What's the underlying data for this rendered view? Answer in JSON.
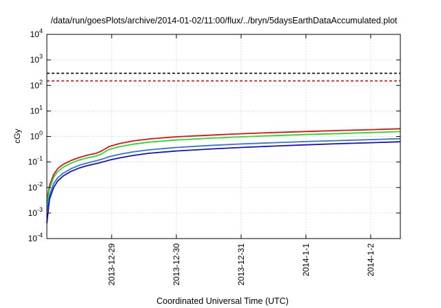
{
  "chart_data": {
    "type": "line",
    "title": "/data/run/goesPlots/archive/2014-01-02/11:00/flux/../bryn/5daysEarthDataAccumulated.plot",
    "xlabel": "Coordinated Universal Time (UTC)",
    "ylabel": "cGy",
    "y_scale": "log",
    "grid": true,
    "legend": "none",
    "xlim": [
      "2013-12-28T00:00",
      "2014-01-02T11:00"
    ],
    "ylim": [
      0.0001,
      10000
    ],
    "x_ticks": [
      {
        "x": "2013-12-29T00:00",
        "label": "2013-12-29"
      },
      {
        "x": "2013-12-30T00:00",
        "label": "2013-12-30"
      },
      {
        "x": "2013-12-31T00:00",
        "label": "2013-12-31"
      },
      {
        "x": "2014-01-01T00:00",
        "label": "2014-1-1"
      },
      {
        "x": "2014-01-02T00:00",
        "label": "2014-1-2"
      }
    ],
    "y_ticks": [
      {
        "value": 0.0001,
        "base": "10",
        "exp": "-4"
      },
      {
        "value": 0.001,
        "base": "10",
        "exp": "-3"
      },
      {
        "value": 0.01,
        "base": "10",
        "exp": "-2"
      },
      {
        "value": 0.1,
        "base": "10",
        "exp": "-1"
      },
      {
        "value": 1,
        "base": "10",
        "exp": "0"
      },
      {
        "value": 10,
        "base": "10",
        "exp": "1"
      },
      {
        "value": 100,
        "base": "10",
        "exp": "2"
      },
      {
        "value": 1000,
        "base": "10",
        "exp": "3"
      },
      {
        "value": 10000,
        "base": "10",
        "exp": "4"
      }
    ],
    "threshold_lines": [
      {
        "value": 300,
        "color": "#000000",
        "style": "dashed"
      },
      {
        "value": 150,
        "color": "#ff0000",
        "style": "dashed"
      }
    ],
    "series": [
      {
        "color": "#e01010",
        "x": [
          "2013-12-28T00:00",
          "2013-12-28T01:00",
          "2013-12-28T02:30",
          "2013-12-28T04:00",
          "2013-12-28T06:00",
          "2013-12-28T09:00",
          "2013-12-28T12:00",
          "2013-12-28T15:00",
          "2013-12-28T18:00",
          "2013-12-28T20:00",
          "2013-12-28T21:30",
          "2013-12-28T23:00",
          "2013-12-29T03:00",
          "2013-12-29T08:00",
          "2013-12-29T14:00",
          "2013-12-30T00:00",
          "2013-12-30T12:00",
          "2013-12-31T00:00",
          "2013-12-31T12:00",
          "2014-01-01T00:00",
          "2014-01-01T12:00",
          "2014-01-02T00:00",
          "2014-01-02T11:00"
        ],
        "values": [
          0.003,
          0.012,
          0.032,
          0.055,
          0.08,
          0.115,
          0.15,
          0.185,
          0.215,
          0.26,
          0.32,
          0.4,
          0.53,
          0.67,
          0.8,
          0.97,
          1.12,
          1.28,
          1.42,
          1.56,
          1.7,
          1.85,
          2.0
        ]
      },
      {
        "color": "#20e020",
        "x": [
          "2013-12-28T00:00",
          "2013-12-28T01:00",
          "2013-12-28T02:30",
          "2013-12-28T04:00",
          "2013-12-28T06:00",
          "2013-12-28T09:00",
          "2013-12-28T12:00",
          "2013-12-28T15:00",
          "2013-12-28T18:00",
          "2013-12-28T20:00",
          "2013-12-28T21:30",
          "2013-12-28T23:00",
          "2013-12-29T03:00",
          "2013-12-29T08:00",
          "2013-12-29T14:00",
          "2013-12-30T00:00",
          "2013-12-30T12:00",
          "2013-12-31T00:00",
          "2013-12-31T12:00",
          "2014-01-01T00:00",
          "2014-01-01T12:00",
          "2014-01-02T00:00",
          "2014-01-02T11:00"
        ],
        "values": [
          0.0025,
          0.009,
          0.025,
          0.042,
          0.062,
          0.09,
          0.12,
          0.145,
          0.17,
          0.2,
          0.25,
          0.31,
          0.4,
          0.5,
          0.6,
          0.73,
          0.85,
          0.97,
          1.08,
          1.19,
          1.3,
          1.42,
          1.55
        ]
      },
      {
        "color": "#3070e0",
        "x": [
          "2013-12-28T00:00",
          "2013-12-28T01:00",
          "2013-12-28T02:30",
          "2013-12-28T04:00",
          "2013-12-28T06:00",
          "2013-12-28T09:00",
          "2013-12-28T12:00",
          "2013-12-28T15:00",
          "2013-12-28T18:00",
          "2013-12-28T20:00",
          "2013-12-28T21:30",
          "2013-12-28T23:00",
          "2013-12-29T03:00",
          "2013-12-29T08:00",
          "2013-12-29T14:00",
          "2013-12-30T00:00",
          "2013-12-30T12:00",
          "2013-12-31T00:00",
          "2013-12-31T12:00",
          "2014-01-01T00:00",
          "2014-01-01T12:00",
          "2014-01-02T00:00",
          "2014-01-02T11:00"
        ],
        "values": [
          0.0012,
          0.005,
          0.014,
          0.024,
          0.036,
          0.055,
          0.075,
          0.092,
          0.11,
          0.125,
          0.14,
          0.16,
          0.2,
          0.25,
          0.3,
          0.37,
          0.44,
          0.51,
          0.57,
          0.63,
          0.69,
          0.75,
          0.82
        ]
      },
      {
        "color": "#1010d0",
        "x": [
          "2013-12-28T00:00",
          "2013-12-28T01:00",
          "2013-12-28T02:30",
          "2013-12-28T04:00",
          "2013-12-28T06:00",
          "2013-12-28T09:00",
          "2013-12-28T12:00",
          "2013-12-28T15:00",
          "2013-12-28T18:00",
          "2013-12-28T20:00",
          "2013-12-28T21:30",
          "2013-12-28T23:00",
          "2013-12-29T03:00",
          "2013-12-29T08:00",
          "2013-12-29T14:00",
          "2013-12-30T00:00",
          "2013-12-30T12:00",
          "2013-12-31T00:00",
          "2013-12-31T12:00",
          "2014-01-01T00:00",
          "2014-01-01T12:00",
          "2014-01-02T00:00",
          "2014-01-02T11:00"
        ],
        "values": [
          0.0004,
          0.0035,
          0.01,
          0.018,
          0.028,
          0.043,
          0.058,
          0.072,
          0.085,
          0.096,
          0.105,
          0.118,
          0.145,
          0.18,
          0.22,
          0.27,
          0.32,
          0.37,
          0.42,
          0.47,
          0.52,
          0.57,
          0.62
        ]
      }
    ]
  }
}
